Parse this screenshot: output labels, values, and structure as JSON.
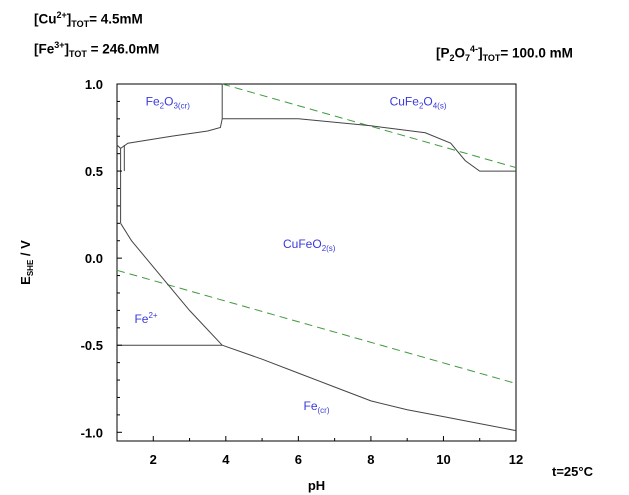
{
  "header": {
    "cu_prefix": "[Cu",
    "cu_charge": "2+",
    "cu_sub": "TOT",
    "cu_value": "= 4.5mM",
    "fe_prefix": "[Fe",
    "fe_charge": "3+",
    "fe_sub": "TOT",
    "fe_value": " = 246.0mM",
    "p_prefix": "[P",
    "p_sub1": "2",
    "p_mid": "O",
    "p_sub2": "7",
    "p_charge": "4-",
    "p_sub": "TOT",
    "p_value": "= 100.0 mM"
  },
  "footer": {
    "temperature": "t=25°C"
  },
  "colors": {
    "boundary": "#444444",
    "water_lines": "#3f9a3f",
    "region_text": "#3a3adb",
    "axis": "#000000"
  },
  "chart_data": {
    "type": "line",
    "title": "",
    "xlabel": "pH",
    "ylabel": "E SHE / V",
    "ylabel_main": "E",
    "ylabel_sub": "SHE",
    "ylabel_unit": " / V",
    "xlim": [
      1,
      12
    ],
    "ylim": [
      -1.05,
      1.0
    ],
    "xticks": [
      2,
      4,
      6,
      8,
      10,
      12
    ],
    "yticks": [
      1.0,
      0.5,
      0.0,
      -0.5,
      -1.0
    ],
    "xtick_labels": [
      "2",
      "4",
      "6",
      "8",
      "10",
      "12"
    ],
    "ytick_labels": [
      "1.0",
      "0.5",
      "0.0",
      "-0.5",
      "-1.0"
    ],
    "series": [
      {
        "points": [
          [
            1.0,
            0.65
          ],
          [
            1.1,
            0.63
          ],
          [
            1.1,
            0.2
          ]
        ]
      },
      {
        "points": [
          [
            1.2,
            0.65
          ],
          [
            1.2,
            0.5
          ]
        ]
      },
      {
        "points": [
          [
            1.1,
            0.63
          ],
          [
            1.3,
            0.66
          ],
          [
            2.5,
            0.7
          ],
          [
            3.5,
            0.73
          ],
          [
            3.85,
            0.75
          ],
          [
            3.9,
            0.8
          ]
        ]
      },
      {
        "points": [
          [
            3.9,
            1.0
          ],
          [
            3.9,
            0.8
          ]
        ]
      },
      {
        "points": [
          [
            3.9,
            0.8
          ],
          [
            6.0,
            0.8
          ],
          [
            8.0,
            0.76
          ],
          [
            9.5,
            0.72
          ],
          [
            10.2,
            0.66
          ],
          [
            10.6,
            0.56
          ],
          [
            11.0,
            0.5
          ],
          [
            12.0,
            0.5
          ]
        ]
      },
      {
        "points": [
          [
            1.1,
            0.2
          ],
          [
            1.4,
            0.1
          ],
          [
            2.0,
            -0.05
          ],
          [
            3.0,
            -0.3
          ],
          [
            3.9,
            -0.5
          ]
        ]
      },
      {
        "points": [
          [
            1.0,
            -0.5
          ],
          [
            3.9,
            -0.5
          ]
        ]
      },
      {
        "points": [
          [
            3.9,
            -0.5
          ],
          [
            5.0,
            -0.58
          ],
          [
            6.0,
            -0.66
          ],
          [
            7.0,
            -0.74
          ],
          [
            8.0,
            -0.82
          ],
          [
            9.0,
            -0.87
          ],
          [
            10.0,
            -0.91
          ],
          [
            11.0,
            -0.95
          ],
          [
            12.0,
            -0.99
          ]
        ]
      }
    ],
    "water_lines": [
      {
        "points": [
          [
            3.9,
            1.0
          ],
          [
            12.0,
            0.52
          ]
        ]
      },
      {
        "points": [
          [
            1.0,
            -0.07
          ],
          [
            12.0,
            -0.72
          ]
        ]
      }
    ],
    "regions": [
      {
        "base": "Fe",
        "mid_sub": "2",
        "mid": "O",
        "sub": "3(cr)",
        "sup": "",
        "x": 2.4,
        "y": 0.9
      },
      {
        "base": "CuFe",
        "mid_sub": "2",
        "mid": "O",
        "sub": "4(s)",
        "sup": "",
        "x": 9.3,
        "y": 0.9
      },
      {
        "base": "CuFeO",
        "mid_sub": "",
        "mid": "",
        "sub": "2(s)",
        "sup": "",
        "x": 6.3,
        "y": 0.08
      },
      {
        "base": "Fe",
        "mid_sub": "",
        "mid": "",
        "sub": "",
        "sup": "2+",
        "x": 1.8,
        "y": -0.35
      },
      {
        "base": "Fe",
        "mid_sub": "",
        "mid": "",
        "sub": "(cr)",
        "sup": "",
        "x": 6.5,
        "y": -0.85
      }
    ]
  }
}
